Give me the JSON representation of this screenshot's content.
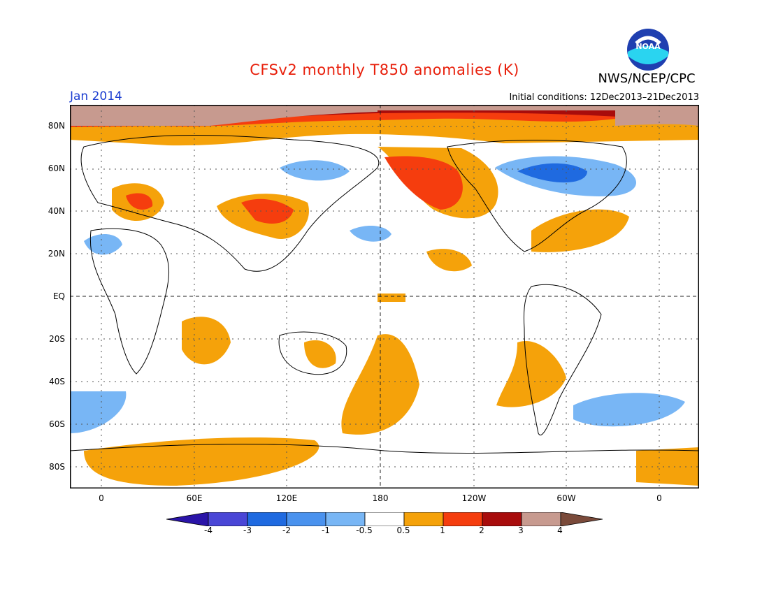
{
  "header": {
    "title": "CFSv2 monthly T850 anomalies (K)",
    "org": "NWS/NCEP/CPC",
    "logo_text": "NOAA",
    "month": "Jan 2014",
    "initial_conditions": "Initial conditions: 12Dec2013–21Dec2013"
  },
  "map": {
    "lon_ticks": [
      "0",
      "60E",
      "120E",
      "180",
      "120W",
      "60W",
      "0"
    ],
    "lat_ticks": [
      "80N",
      "60N",
      "40N",
      "20N",
      "EQ",
      "20S",
      "40S",
      "60S",
      "80S"
    ]
  },
  "colorbar": {
    "labels": [
      "-4",
      "-3",
      "-2",
      "-1",
      "-0.5",
      "0.5",
      "1",
      "2",
      "3",
      "4"
    ],
    "colors": [
      "#2a14a8",
      "#4a46d6",
      "#1f6ae0",
      "#4a92ee",
      "#78b6f5",
      "#ffffff",
      "#f5a20a",
      "#f53d0e",
      "#a80c0c",
      "#c79a8f",
      "#7a4a3a"
    ]
  }
}
